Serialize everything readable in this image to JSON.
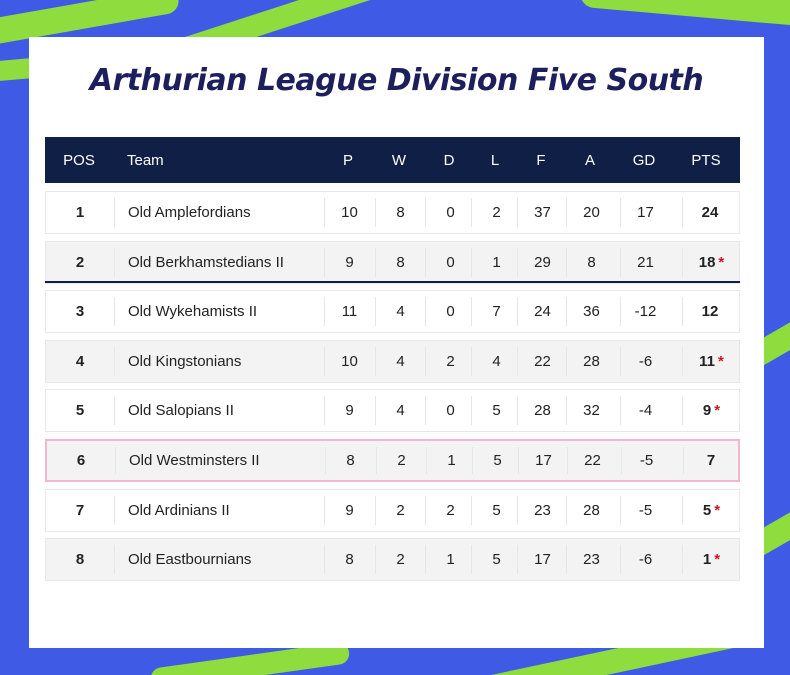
{
  "title": "Arthurian League Division Five South",
  "headers": {
    "pos": "POS",
    "team": "Team",
    "p": "P",
    "w": "W",
    "d": "D",
    "l": "L",
    "f": "F",
    "a": "A",
    "gd": "GD",
    "pts": "PTS"
  },
  "highlight_color": "#f2b6cf",
  "header_color": "#0f1f45",
  "rows": [
    {
      "pos": "1",
      "team": "Old Amplefordians",
      "p": "10",
      "w": "8",
      "d": "0",
      "l": "2",
      "f": "37",
      "a": "20",
      "gd": "17",
      "pts": "24",
      "ast": ""
    },
    {
      "pos": "2",
      "team": "Old Berkhamstedians II",
      "p": "9",
      "w": "8",
      "d": "0",
      "l": "1",
      "f": "29",
      "a": "8",
      "gd": "21",
      "pts": "18",
      "ast": "*"
    },
    {
      "pos": "3",
      "team": "Old Wykehamists II",
      "p": "11",
      "w": "4",
      "d": "0",
      "l": "7",
      "f": "24",
      "a": "36",
      "gd": "-12",
      "pts": "12",
      "ast": ""
    },
    {
      "pos": "4",
      "team": "Old Kingstonians",
      "p": "10",
      "w": "4",
      "d": "2",
      "l": "4",
      "f": "22",
      "a": "28",
      "gd": "-6",
      "pts": "11",
      "ast": "*"
    },
    {
      "pos": "5",
      "team": "Old Salopians II",
      "p": "9",
      "w": "4",
      "d": "0",
      "l": "5",
      "f": "28",
      "a": "32",
      "gd": "-4",
      "pts": "9",
      "ast": "*"
    },
    {
      "pos": "6",
      "team": "Old Westminsters II",
      "p": "8",
      "w": "2",
      "d": "1",
      "l": "5",
      "f": "17",
      "a": "22",
      "gd": "-5",
      "pts": "7",
      "ast": ""
    },
    {
      "pos": "7",
      "team": "Old Ardinians II",
      "p": "9",
      "w": "2",
      "d": "2",
      "l": "5",
      "f": "23",
      "a": "28",
      "gd": "-5",
      "pts": "5",
      "ast": "*"
    },
    {
      "pos": "8",
      "team": "Old Eastbournians",
      "p": "8",
      "w": "2",
      "d": "1",
      "l": "5",
      "f": "17",
      "a": "23",
      "gd": "-6",
      "pts": "1",
      "ast": "*"
    }
  ]
}
